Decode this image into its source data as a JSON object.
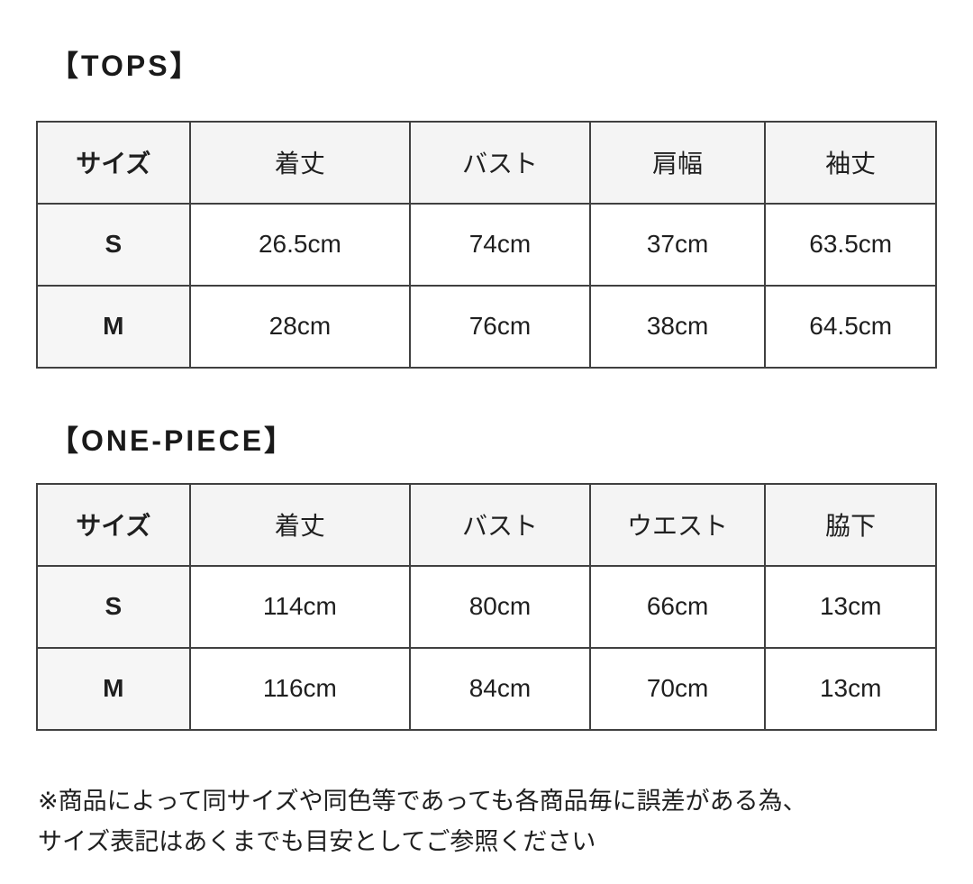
{
  "colors": {
    "background": "#ffffff",
    "header_bg": "#f4f4f4",
    "size_col_bg": "#f6f6f6",
    "border": "#404040",
    "text": "#1f1f1f"
  },
  "sections": [
    {
      "title": "【TOPS】",
      "table": {
        "headers": [
          "サイズ",
          "着丈",
          "バスト",
          "肩幅",
          "袖丈"
        ],
        "rows": [
          {
            "size": "S",
            "values": [
              "26.5cm",
              "74cm",
              "37cm",
              "63.5cm"
            ]
          },
          {
            "size": "M",
            "values": [
              "28cm",
              "76cm",
              "38cm",
              "64.5cm"
            ]
          }
        ]
      }
    },
    {
      "title": "【ONE-PIECE】",
      "table": {
        "headers": [
          "サイズ",
          "着丈",
          "バスト",
          "ウエスト",
          "脇下"
        ],
        "rows": [
          {
            "size": "S",
            "values": [
              "114cm",
              "80cm",
              "66cm",
              "13cm"
            ]
          },
          {
            "size": "M",
            "values": [
              "116cm",
              "84cm",
              "70cm",
              "13cm"
            ]
          }
        ]
      }
    }
  ],
  "note": {
    "line1": "※商品によって同サイズや同色等であっても各商品毎に誤差がある為、",
    "line2": "サイズ表記はあくまでも目安としてご参照ください"
  }
}
